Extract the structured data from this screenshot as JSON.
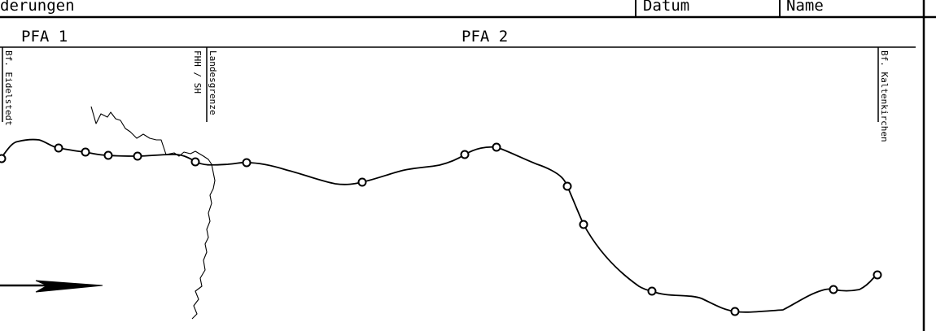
{
  "title_block": {
    "changes_label": "derungen",
    "date_label": "Datum",
    "name_label": "Name"
  },
  "sections": [
    {
      "label": "PFA 1"
    },
    {
      "label": "PFA 2"
    }
  ],
  "markers": {
    "start": {
      "label": "Bf. Eidelstedt"
    },
    "border": {
      "label_primary": "Landesgrenze",
      "label_secondary": "FHH / SH"
    },
    "end": {
      "label": "Bf. Kaltenkirchen"
    }
  },
  "route": {
    "station_count": 16
  },
  "direction_arrow": {
    "icon": "direction-arrow-icon"
  }
}
